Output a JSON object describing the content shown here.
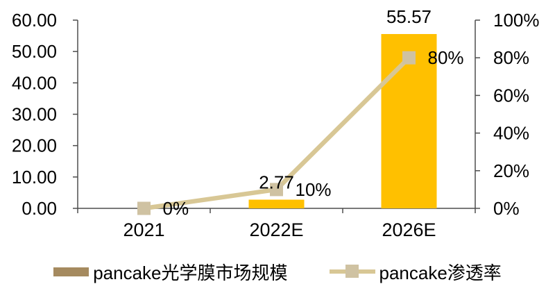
{
  "chart_data": {
    "type": "bar+line",
    "title": "",
    "categories": [
      "2021",
      "2022E",
      "2026E"
    ],
    "series": [
      {
        "name": "pancake光学膜市场规模",
        "type": "bar",
        "axis": "left",
        "values": [
          0,
          2.77,
          55.57
        ],
        "data_labels": [
          "",
          "2.77",
          "55.57"
        ],
        "bar_color": "#FFC000",
        "legend_swatch_color": "#A58A5F"
      },
      {
        "name": "pancake渗透率",
        "type": "line",
        "axis": "right",
        "values": [
          0,
          10,
          80
        ],
        "data_labels": [
          "0%",
          "10%",
          "80%"
        ],
        "line_color": "#D8C795",
        "marker_color": "#CFC2A2"
      }
    ],
    "left_axis": {
      "min": 0,
      "max": 60,
      "tick_labels": [
        "60.00",
        "50.00",
        "40.00",
        "30.00",
        "20.00",
        "10.00",
        "0.00"
      ]
    },
    "right_axis": {
      "min": 0,
      "max": 100,
      "tick_labels": [
        "100%",
        "80%",
        "60%",
        "40%",
        "20%",
        "0%"
      ]
    },
    "grid": false,
    "legend_position": "bottom",
    "text_color": "#000000",
    "axis_color": "#4D4D4D"
  }
}
